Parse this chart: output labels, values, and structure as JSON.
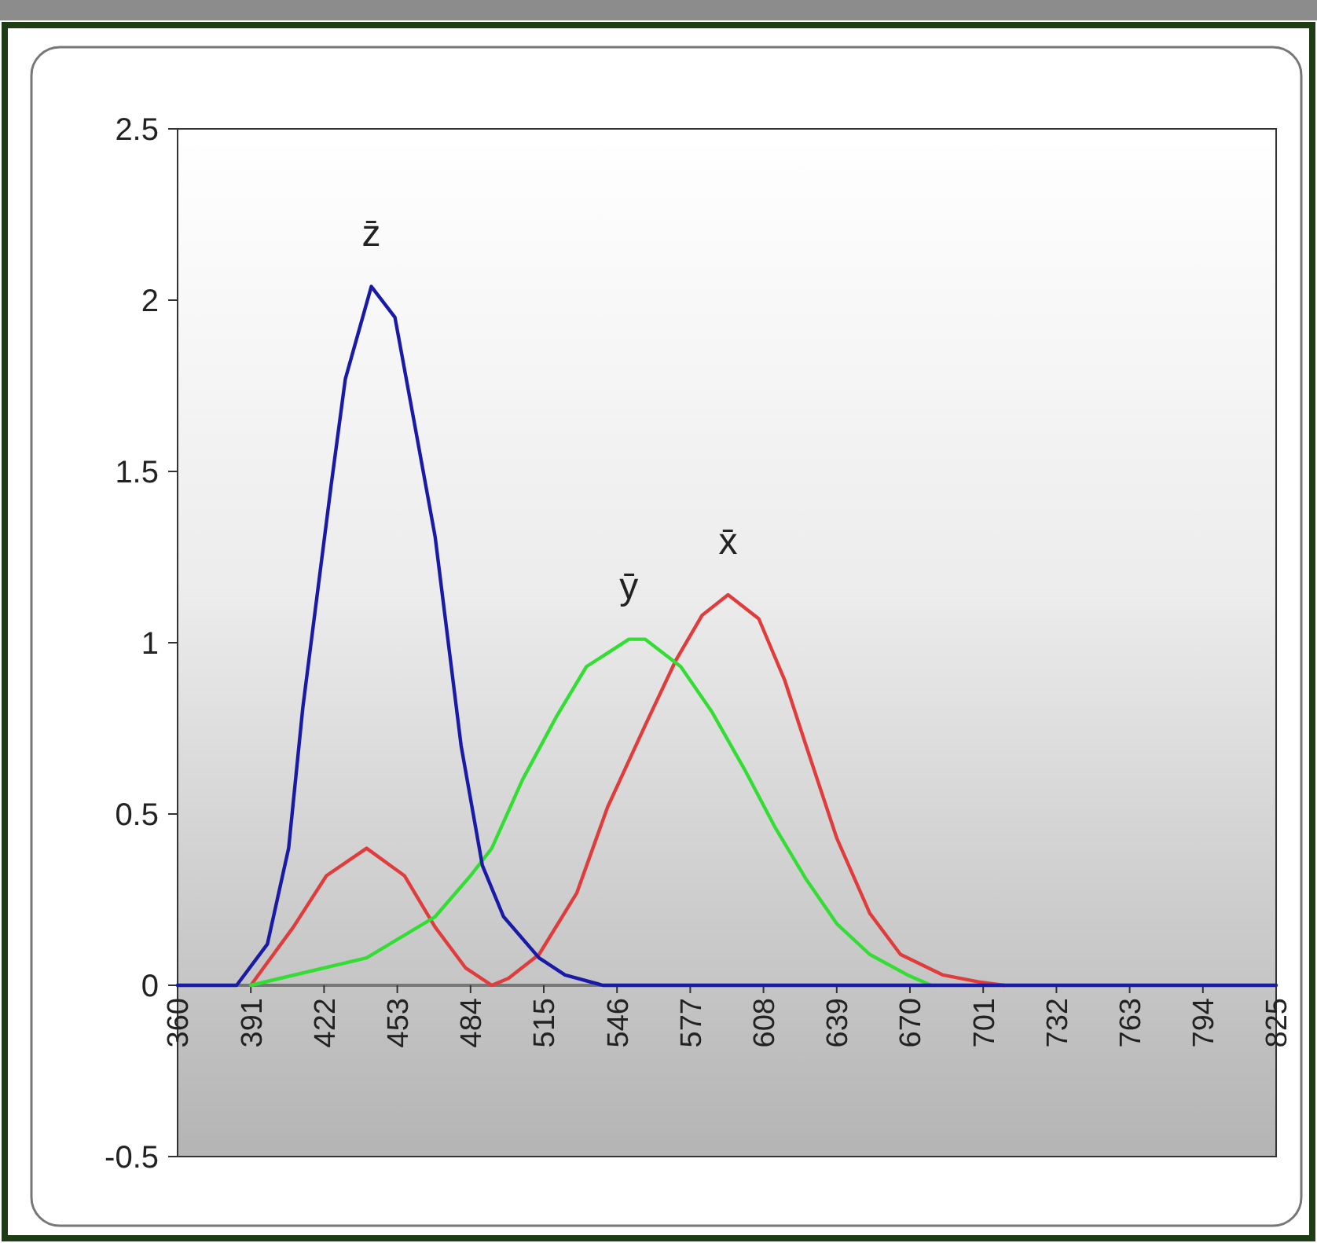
{
  "chart_data": {
    "type": "line",
    "xlim": [
      360,
      825
    ],
    "xticks": [
      360,
      391,
      422,
      453,
      484,
      515,
      546,
      577,
      608,
      639,
      670,
      701,
      732,
      763,
      794,
      825
    ],
    "ylim": [
      -0.5,
      2.5
    ],
    "yticks": [
      -0.5,
      0,
      0.5,
      1,
      1.5,
      2,
      2.5
    ],
    "grid": false,
    "marker": "none",
    "line_style": "solid",
    "series": [
      {
        "name": "x̄",
        "color": "#e03c3c",
        "x": [
          391,
          409,
          423,
          440,
          456,
          469,
          482,
          493,
          500,
          513,
          529,
          542,
          558,
          571,
          582,
          593,
          606,
          617,
          626,
          639,
          653,
          666,
          684,
          699,
          710
        ],
        "values": [
          0,
          0.17,
          0.32,
          0.4,
          0.32,
          0.17,
          0.05,
          0,
          0.02,
          0.09,
          0.27,
          0.52,
          0.76,
          0.95,
          1.08,
          1.14,
          1.07,
          0.89,
          0.7,
          0.43,
          0.21,
          0.09,
          0.03,
          0.01,
          0
        ]
      },
      {
        "name": "ȳ",
        "color": "#33dd33",
        "x": [
          391,
          440,
          469,
          484,
          493,
          506,
          520,
          533,
          551,
          558,
          573,
          586,
          600,
          613,
          626,
          639,
          653,
          669,
          679
        ],
        "values": [
          0,
          0.08,
          0.2,
          0.32,
          0.4,
          0.6,
          0.78,
          0.93,
          1.01,
          1.01,
          0.93,
          0.8,
          0.63,
          0.46,
          0.31,
          0.18,
          0.09,
          0.03,
          0
        ]
      },
      {
        "name": "z̄",
        "color": "#1a1aa8",
        "x": [
          360,
          385,
          398,
          407,
          413,
          425,
          431,
          442,
          452,
          460,
          469,
          480,
          489,
          498,
          513,
          524,
          540,
          825
        ],
        "values": [
          0,
          0,
          0.12,
          0.4,
          0.81,
          1.46,
          1.77,
          2.04,
          1.95,
          1.65,
          1.31,
          0.7,
          0.35,
          0.2,
          0.08,
          0.03,
          0,
          0
        ]
      }
    ]
  }
}
